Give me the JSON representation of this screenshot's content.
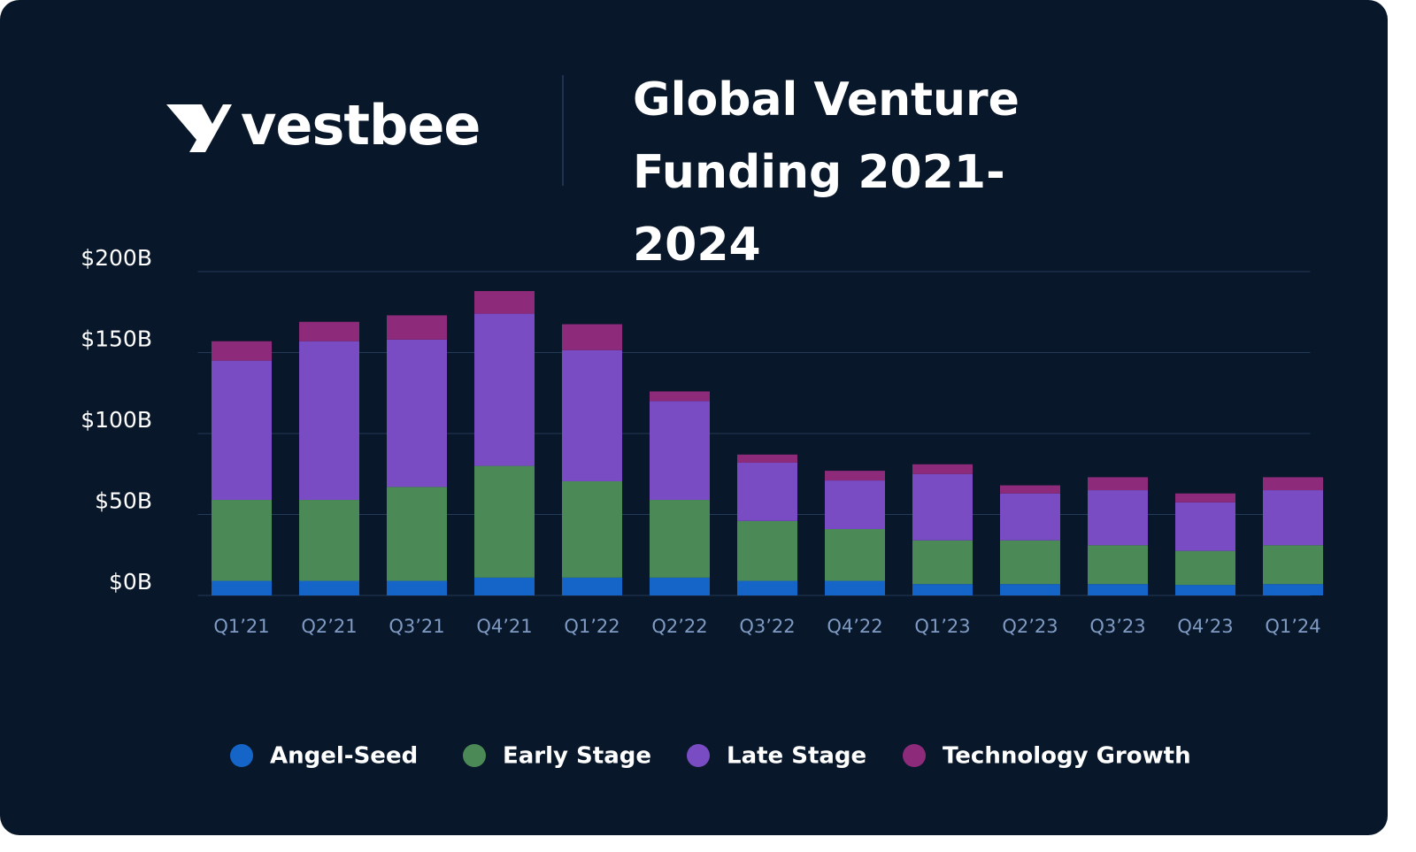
{
  "logo": "vestbee",
  "chart_data": {
    "type": "stacked_bar",
    "title": "Global Venture Funding 2021-2024",
    "categories": [
      "Q1’21",
      "Q2’21",
      "Q3’21",
      "Q4’21",
      "Q1’22",
      "Q2’22",
      "Q3’22",
      "Q4’22",
      "Q1’23",
      "Q2’23",
      "Q3’23",
      "Q4’23",
      "Q1’24"
    ],
    "series": [
      {
        "name": "Angel-Seed",
        "color": "#1565c8",
        "values": [
          9,
          9,
          9,
          11,
          11,
          11,
          9,
          9,
          7,
          7,
          7,
          6.5,
          7
        ]
      },
      {
        "name": "Early Stage",
        "color": "#4b8a56",
        "values": [
          50,
          50,
          58,
          69,
          59.5,
          48,
          37,
          32,
          27,
          27,
          24,
          21,
          24
        ]
      },
      {
        "name": "Late Stage",
        "color": "#7a4cc4",
        "values": [
          86,
          98,
          91,
          94,
          81,
          61,
          36,
          30,
          41,
          29,
          34,
          30,
          34
        ]
      },
      {
        "name": "Technology Growth",
        "color": "#8e2a7a",
        "values": [
          12,
          12,
          15,
          14,
          16,
          6,
          5,
          6,
          6,
          5,
          8,
          5.5,
          8
        ]
      }
    ],
    "ylim": [
      0,
      200
    ],
    "yticks": [
      {
        "value": 0,
        "label": "$0B"
      },
      {
        "value": 50,
        "label": "$50B"
      },
      {
        "value": 100,
        "label": "$100B"
      },
      {
        "value": 150,
        "label": "$150B"
      },
      {
        "value": 200,
        "label": "$200B"
      }
    ],
    "grid": true
  }
}
